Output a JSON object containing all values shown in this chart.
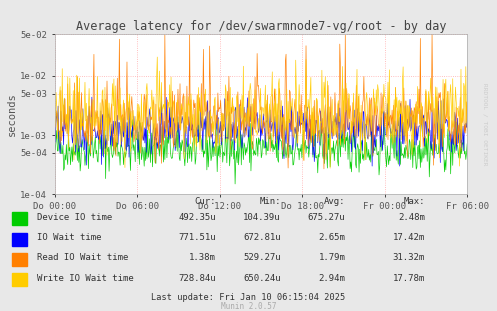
{
  "title": "Average latency for /dev/swarmnode7-vg/root - by day",
  "ylabel": "seconds",
  "bg_color": "#e8e8e8",
  "plot_bg_color": "#ffffff",
  "grid_color": "#ffaaaa",
  "x_labels": [
    "Do 00:00",
    "Do 06:00",
    "Do 12:00",
    "Do 18:00",
    "Fr 00:00",
    "Fr 06:00"
  ],
  "ylim_min": 0.0001,
  "ylim_max": 0.05,
  "yticks": [
    0.0001,
    0.0005,
    0.001,
    0.005,
    0.01,
    0.05
  ],
  "ytick_labels": [
    "1e-04",
    "5e-04",
    "1e-03",
    "5e-03",
    "1e-02",
    "5e-02"
  ],
  "series": [
    {
      "label": "Device IO time",
      "color": "#00cc00"
    },
    {
      "label": "IO Wait time",
      "color": "#0000ff"
    },
    {
      "label": "Read IO Wait time",
      "color": "#ff7f00"
    },
    {
      "label": "Write IO Wait time",
      "color": "#ffcc00"
    }
  ],
  "legend_stats": [
    {
      "name": "Device IO time",
      "cur": "492.35u",
      "min": "104.39u",
      "avg": "675.27u",
      "max": "2.48m"
    },
    {
      "name": "IO Wait time",
      "cur": "771.51u",
      "min": "672.81u",
      "avg": "2.65m",
      "max": "17.42m"
    },
    {
      "name": "Read IO Wait time",
      "cur": "1.38m",
      "min": "529.27u",
      "avg": "1.79m",
      "max": "31.32m"
    },
    {
      "name": "Write IO Wait time",
      "cur": "728.84u",
      "min": "650.24u",
      "avg": "2.94m",
      "max": "17.78m"
    }
  ],
  "last_update": "Last update: Fri Jan 10 06:15:04 2025",
  "munin_version": "Munin 2.0.57",
  "rrdtool_label": "RRDTOOL / TOBI OETIKER"
}
